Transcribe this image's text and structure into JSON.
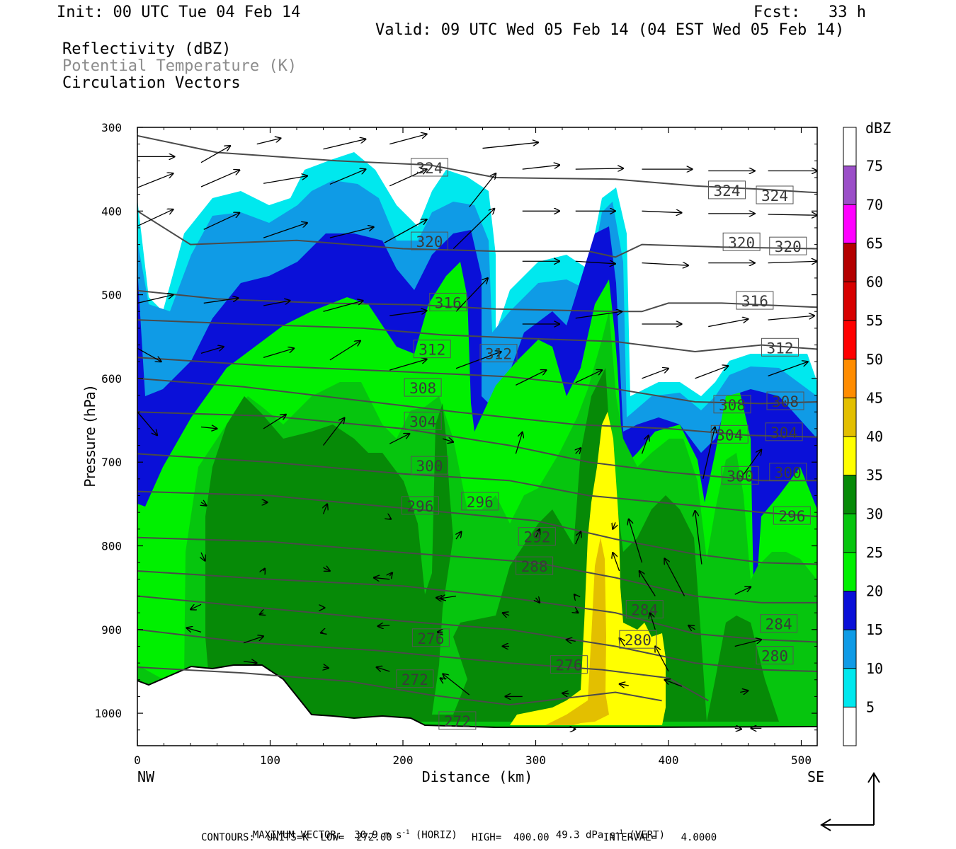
{
  "header": {
    "init": "Init: 00 UTC Tue 04 Feb 14",
    "fcst": "Fcst:   33 h",
    "valid": "Valid: 09 UTC Wed 05 Feb 14 (04 EST Wed 05 Feb 14)",
    "fields": [
      "Reflectivity (dBZ)",
      "Potential Temperature (K)",
      "Circulation Vectors"
    ]
  },
  "colors": {
    "dbz": [
      "#ffffff",
      "#00e8ee",
      "#0f9be6",
      "#0a10d8",
      "#00f000",
      "#06c50e",
      "#068a07",
      "#ffff00",
      "#e3bf00",
      "#ff8c00",
      "#ff0000",
      "#d70000",
      "#b40000",
      "#ff00ff",
      "#9b4fc8"
    ],
    "contour": "#4a4a4a"
  },
  "chart_data": {
    "type": "heatmap",
    "xlabel": "Distance (km)",
    "ylabel": "Pressure (hPa)",
    "x_ticks": [
      0,
      100,
      200,
      300,
      400,
      500
    ],
    "y_ticks": [
      300,
      400,
      500,
      600,
      700,
      800,
      900,
      1000
    ],
    "xlim": [
      0,
      512
    ],
    "ylim": [
      300,
      1040
    ],
    "x_end_labels": {
      "left": "NW",
      "right": "SE"
    },
    "colorbar": {
      "title": "dBZ",
      "levels": [
        5,
        10,
        15,
        20,
        25,
        30,
        35,
        40,
        45,
        50,
        55,
        60,
        65,
        70,
        75
      ]
    },
    "theta_contour_labels": [
      324,
      320,
      316,
      312,
      308,
      304,
      300,
      296,
      292,
      288,
      284,
      280,
      276,
      272
    ],
    "theta_lines": [
      {
        "k": 324,
        "p": [
          [
            0,
            310
          ],
          [
            60,
            330
          ],
          [
            150,
            340
          ],
          [
            220,
            345
          ],
          [
            270,
            360
          ],
          [
            360,
            362
          ],
          [
            420,
            370
          ],
          [
            470,
            374
          ],
          [
            512,
            378
          ]
        ]
      },
      {
        "k": 320,
        "p": [
          [
            0,
            400
          ],
          [
            40,
            440
          ],
          [
            120,
            435
          ],
          [
            200,
            445
          ],
          [
            270,
            448
          ],
          [
            340,
            448
          ],
          [
            360,
            455
          ],
          [
            380,
            440
          ],
          [
            440,
            443
          ],
          [
            512,
            445
          ]
        ]
      },
      {
        "k": 316,
        "p": [
          [
            0,
            495
          ],
          [
            60,
            505
          ],
          [
            140,
            510
          ],
          [
            210,
            512
          ],
          [
            270,
            517
          ],
          [
            360,
            520
          ],
          [
            380,
            520
          ],
          [
            400,
            510
          ],
          [
            440,
            510
          ],
          [
            512,
            515
          ]
        ]
      },
      {
        "k": 312,
        "p": [
          [
            0,
            530
          ],
          [
            80,
            535
          ],
          [
            170,
            540
          ],
          [
            230,
            548
          ],
          [
            290,
            552
          ],
          [
            360,
            556
          ],
          [
            420,
            568
          ],
          [
            470,
            560
          ],
          [
            512,
            565
          ]
        ]
      },
      {
        "k": 308,
        "p": [
          [
            0,
            575
          ],
          [
            100,
            585
          ],
          [
            200,
            592
          ],
          [
            280,
            598
          ],
          [
            350,
            610
          ],
          [
            420,
            628
          ],
          [
            470,
            630
          ],
          [
            512,
            628
          ]
        ]
      },
      {
        "k": 304,
        "p": [
          [
            0,
            600
          ],
          [
            80,
            610
          ],
          [
            160,
            625
          ],
          [
            240,
            640
          ],
          [
            330,
            655
          ],
          [
            400,
            660
          ],
          [
            460,
            668
          ],
          [
            512,
            670
          ]
        ]
      },
      {
        "k": 300,
        "p": [
          [
            0,
            640
          ],
          [
            100,
            645
          ],
          [
            200,
            660
          ],
          [
            280,
            680
          ],
          [
            340,
            700
          ],
          [
            400,
            712
          ],
          [
            470,
            722
          ],
          [
            512,
            722
          ]
        ]
      },
      {
        "k": 296,
        "p": [
          [
            0,
            690
          ],
          [
            100,
            700
          ],
          [
            200,
            714
          ],
          [
            280,
            722
          ],
          [
            340,
            740
          ],
          [
            420,
            752
          ],
          [
            470,
            760
          ],
          [
            512,
            765
          ]
        ]
      },
      {
        "k": 292,
        "p": [
          [
            0,
            735
          ],
          [
            100,
            740
          ],
          [
            200,
            755
          ],
          [
            300,
            770
          ],
          [
            360,
            792
          ],
          [
            420,
            810
          ],
          [
            470,
            820
          ],
          [
            512,
            822
          ]
        ]
      },
      {
        "k": 288,
        "p": [
          [
            0,
            790
          ],
          [
            100,
            795
          ],
          [
            200,
            808
          ],
          [
            300,
            820
          ],
          [
            360,
            838
          ],
          [
            420,
            860
          ],
          [
            470,
            868
          ],
          [
            512,
            868
          ]
        ]
      },
      {
        "k": 284,
        "p": [
          [
            0,
            830
          ],
          [
            100,
            840
          ],
          [
            200,
            848
          ],
          [
            280,
            862
          ],
          [
            360,
            880
          ],
          [
            420,
            905
          ],
          [
            470,
            912
          ],
          [
            512,
            915
          ]
        ]
      },
      {
        "k": 280,
        "p": [
          [
            0,
            860
          ],
          [
            100,
            875
          ],
          [
            200,
            890
          ],
          [
            280,
            900
          ],
          [
            360,
            920
          ],
          [
            420,
            940
          ],
          [
            470,
            948
          ],
          [
            512,
            950
          ]
        ]
      },
      {
        "k": 276,
        "p": [
          [
            0,
            900
          ],
          [
            80,
            915
          ],
          [
            180,
            925
          ],
          [
            280,
            940
          ],
          [
            350,
            948
          ],
          [
            400,
            958
          ],
          [
            430,
            985
          ]
        ]
      },
      {
        "k": 272,
        "p": [
          [
            0,
            945
          ],
          [
            80,
            952
          ],
          [
            160,
            962
          ],
          [
            220,
            978
          ],
          [
            280,
            990
          ],
          [
            360,
            975
          ],
          [
            395,
            985
          ]
        ]
      }
    ],
    "theta_label_positions": [
      {
        "t": "324",
        "x": 220,
        "p": 349
      },
      {
        "t": "324",
        "x": 444,
        "p": 376
      },
      {
        "t": "324",
        "x": 480,
        "p": 382
      },
      {
        "t": "320",
        "x": 220,
        "p": 437
      },
      {
        "t": "320",
        "x": 455,
        "p": 438
      },
      {
        "t": "320",
        "x": 490,
        "p": 443
      },
      {
        "t": "316",
        "x": 234,
        "p": 510
      },
      {
        "t": "316",
        "x": 465,
        "p": 508
      },
      {
        "t": "312",
        "x": 222,
        "p": 566
      },
      {
        "t": "312",
        "x": 272,
        "p": 571
      },
      {
        "t": "312",
        "x": 484,
        "p": 564
      },
      {
        "t": "308",
        "x": 215,
        "p": 612
      },
      {
        "t": "308",
        "x": 448,
        "p": 632
      },
      {
        "t": "308",
        "x": 488,
        "p": 628
      },
      {
        "t": "304",
        "x": 215,
        "p": 652
      },
      {
        "t": "304",
        "x": 446,
        "p": 668
      },
      {
        "t": "304",
        "x": 487,
        "p": 665
      },
      {
        "t": "300",
        "x": 220,
        "p": 705
      },
      {
        "t": "300",
        "x": 454,
        "p": 717
      },
      {
        "t": "300",
        "x": 490,
        "p": 713
      },
      {
        "t": "296",
        "x": 213,
        "p": 753
      },
      {
        "t": "296",
        "x": 258,
        "p": 748
      },
      {
        "t": "296",
        "x": 493,
        "p": 765
      },
      {
        "t": "292",
        "x": 301,
        "p": 790
      },
      {
        "t": "288",
        "x": 299,
        "p": 825
      },
      {
        "t": "284",
        "x": 382,
        "p": 877
      },
      {
        "t": "284",
        "x": 483,
        "p": 894
      },
      {
        "t": "280",
        "x": 377,
        "p": 913
      },
      {
        "t": "280",
        "x": 480,
        "p": 932
      },
      {
        "t": "276",
        "x": 221,
        "p": 911
      },
      {
        "t": "276",
        "x": 325,
        "p": 943
      },
      {
        "t": "272",
        "x": 209,
        "p": 960
      },
      {
        "t": "272",
        "x": 241,
        "p": 1010
      }
    ],
    "vectors": [
      [
        0,
        335,
        28,
        335
      ],
      [
        48,
        342,
        70,
        322
      ],
      [
        90,
        320,
        108,
        313
      ],
      [
        140,
        326,
        172,
        314
      ],
      [
        190,
        320,
        218,
        308
      ],
      [
        260,
        325,
        302,
        318
      ],
      [
        0,
        372,
        27,
        355
      ],
      [
        48,
        371,
        77,
        351
      ],
      [
        95,
        367,
        128,
        358
      ],
      [
        145,
        368,
        172,
        350
      ],
      [
        190,
        370,
        218,
        350
      ],
      [
        250,
        395,
        270,
        355
      ],
      [
        0,
        418,
        27,
        398
      ],
      [
        50,
        422,
        77,
        402
      ],
      [
        95,
        432,
        128,
        414
      ],
      [
        145,
        432,
        178,
        419
      ],
      [
        186,
        438,
        218,
        410
      ],
      [
        238,
        445,
        269,
        397
      ],
      [
        290,
        350,
        318,
        345
      ],
      [
        330,
        350,
        366,
        349
      ],
      [
        380,
        350,
        418,
        350
      ],
      [
        430,
        352,
        465,
        352
      ],
      [
        475,
        352,
        512,
        352
      ],
      [
        290,
        400,
        318,
        400
      ],
      [
        330,
        400,
        360,
        400
      ],
      [
        380,
        400,
        410,
        402
      ],
      [
        430,
        403,
        465,
        403
      ],
      [
        475,
        404,
        512,
        405
      ],
      [
        290,
        460,
        318,
        460
      ],
      [
        330,
        460,
        360,
        463
      ],
      [
        380,
        462,
        415,
        465
      ],
      [
        430,
        462,
        465,
        462
      ],
      [
        475,
        462,
        512,
        460
      ],
      [
        0,
        510,
        27,
        500
      ],
      [
        50,
        510,
        76,
        504
      ],
      [
        95,
        513,
        115,
        507
      ],
      [
        140,
        520,
        170,
        507
      ],
      [
        190,
        525,
        218,
        519
      ],
      [
        240,
        520,
        264,
        480
      ],
      [
        290,
        535,
        318,
        535
      ],
      [
        330,
        528,
        365,
        520
      ],
      [
        380,
        535,
        410,
        535
      ],
      [
        430,
        538,
        460,
        529
      ],
      [
        475,
        530,
        510,
        525
      ],
      [
        0,
        564,
        18,
        580
      ],
      [
        48,
        570,
        65,
        562
      ],
      [
        95,
        575,
        118,
        564
      ],
      [
        145,
        578,
        168,
        555
      ],
      [
        190,
        590,
        218,
        577
      ],
      [
        240,
        588,
        274,
        568
      ],
      [
        285,
        608,
        308,
        590
      ],
      [
        330,
        605,
        350,
        590
      ],
      [
        380,
        600,
        400,
        588
      ],
      [
        420,
        600,
        445,
        585
      ],
      [
        475,
        597,
        505,
        580
      ],
      [
        0,
        640,
        15,
        668
      ],
      [
        48,
        658,
        60,
        660
      ],
      [
        95,
        660,
        112,
        643
      ],
      [
        140,
        680,
        156,
        647
      ],
      [
        190,
        678,
        205,
        666
      ],
      [
        230,
        672,
        238,
        676
      ],
      [
        285,
        690,
        290,
        664
      ],
      [
        330,
        690,
        334,
        683
      ],
      [
        380,
        690,
        385,
        668
      ],
      [
        426,
        720,
        435,
        658
      ],
      [
        455,
        718,
        470,
        685
      ],
      [
        48,
        748,
        52,
        752
      ],
      [
        95,
        748,
        98,
        748
      ],
      [
        140,
        762,
        143,
        750
      ],
      [
        190,
        767,
        191,
        768
      ],
      [
        240,
        792,
        244,
        783
      ],
      [
        300,
        790,
        303,
        780
      ],
      [
        330,
        798,
        334,
        783
      ],
      [
        360,
        772,
        358,
        780
      ],
      [
        380,
        820,
        370,
        768
      ],
      [
        425,
        822,
        420,
        758
      ],
      [
        48,
        808,
        51,
        818
      ],
      [
        95,
        830,
        96,
        827
      ],
      [
        140,
        826,
        145,
        830
      ],
      [
        190,
        836,
        192,
        832
      ],
      [
        240,
        860,
        228,
        863
      ],
      [
        300,
        862,
        303,
        868
      ],
      [
        330,
        860,
        329,
        858
      ],
      [
        363,
        830,
        358,
        808
      ],
      [
        390,
        860,
        378,
        830
      ],
      [
        412,
        860,
        397,
        815
      ],
      [
        48,
        870,
        40,
        876
      ],
      [
        95,
        880,
        92,
        882
      ],
      [
        140,
        874,
        141,
        874
      ],
      [
        190,
        840,
        178,
        838
      ],
      [
        230,
        863,
        225,
        862
      ],
      [
        280,
        883,
        275,
        880
      ],
      [
        330,
        878,
        332,
        880
      ],
      [
        390,
        900,
        386,
        880
      ],
      [
        420,
        900,
        415,
        895
      ],
      [
        450,
        858,
        462,
        849
      ],
      [
        48,
        903,
        37,
        898
      ],
      [
        80,
        916,
        95,
        908
      ],
      [
        140,
        903,
        138,
        904
      ],
      [
        190,
        895,
        181,
        896
      ],
      [
        230,
        903,
        226,
        903
      ],
      [
        280,
        920,
        275,
        920
      ],
      [
        330,
        914,
        323,
        912
      ],
      [
        367,
        920,
        363,
        910
      ],
      [
        400,
        950,
        390,
        920
      ],
      [
        450,
        920,
        470,
        912
      ],
      [
        80,
        938,
        90,
        940
      ],
      [
        140,
        945,
        144,
        946
      ],
      [
        190,
        950,
        180,
        945
      ],
      [
        230,
        960,
        228,
        958
      ],
      [
        250,
        978,
        230,
        953
      ],
      [
        290,
        980,
        277,
        980
      ],
      [
        325,
        977,
        320,
        976
      ],
      [
        370,
        967,
        363,
        965
      ],
      [
        410,
        968,
        397,
        960
      ],
      [
        454,
        975,
        460,
        973
      ],
      [
        328,
        1019,
        330,
        1019
      ],
      [
        450,
        1018,
        455,
        1019
      ],
      [
        470,
        1018,
        462,
        1018
      ]
    ],
    "max_vector": {
      "text_left": "MAXIMUM VECTOR:  30.9 m s",
      "sup1": "-1",
      "text_mid": " (HORIZ)",
      "text_right": "49.3 dPa s",
      "sup2": "-1",
      "text_end": " (VERT)"
    },
    "contours_info": {
      "a": "CONTOURS:  UNITS=K  LOW=  272.00",
      "b": "HIGH=  400.00",
      "c": "INTERVAL=    4.0000"
    }
  }
}
